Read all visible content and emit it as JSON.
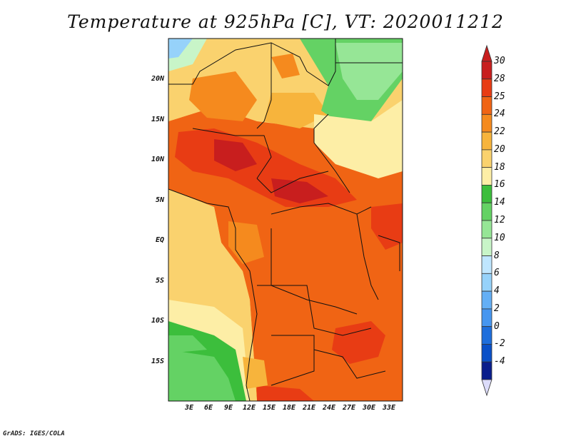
{
  "title": "Temperature at 925hPa [C], VT: 2020011212",
  "footer": "GrADS: IGES/COLA",
  "map": {
    "lat_labels": [
      "20N",
      "15N",
      "10N",
      "5N",
      "EQ",
      "5S",
      "10S",
      "15S"
    ],
    "lon_labels": [
      "3E",
      "6E",
      "9E",
      "12E",
      "15E",
      "18E",
      "21E",
      "24E",
      "27E",
      "30E",
      "33E"
    ]
  },
  "colorbar": {
    "labels": [
      "30",
      "28",
      "25",
      "24",
      "22",
      "20",
      "18",
      "16",
      "14",
      "12",
      "10",
      "8",
      "6",
      "4",
      "2",
      "0",
      "-2",
      "-4"
    ],
    "colors": [
      "#c81e1e",
      "#e83c14",
      "#f06414",
      "#f58a1e",
      "#f7b43c",
      "#fad26e",
      "#fdeea6",
      "#3cbe3c",
      "#64d264",
      "#96e696",
      "#c8f5c8",
      "#bfe6ff",
      "#96d2fa",
      "#64aff5",
      "#4696f0",
      "#1e6edc",
      "#0a50c8",
      "#0a1e8c"
    ]
  }
}
